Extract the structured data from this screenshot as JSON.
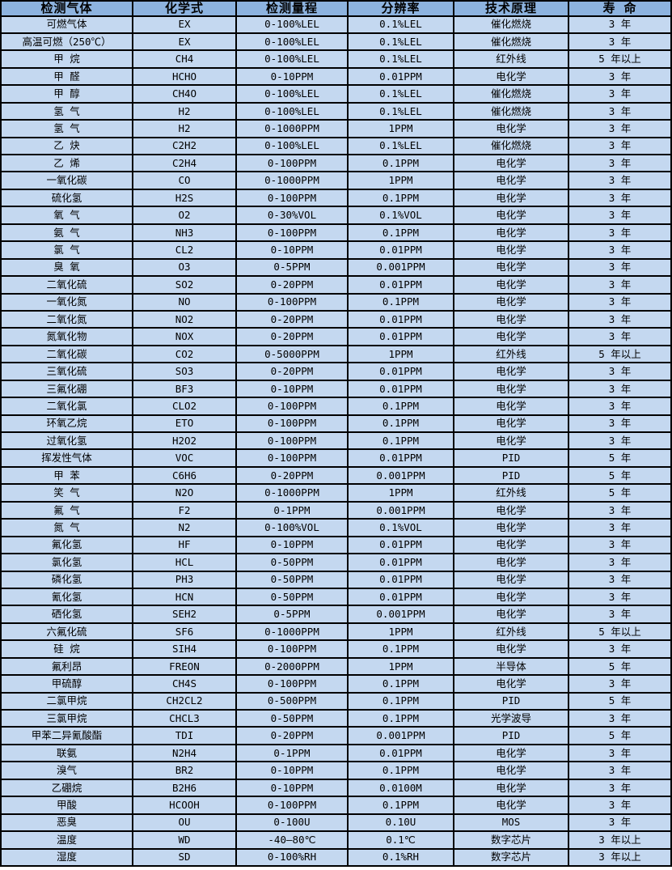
{
  "colors": {
    "header_bg": "#8db3df",
    "row_bg": "#c4d8f0",
    "border": "#000000",
    "text": "#000000"
  },
  "table": {
    "headers": [
      "检测气体",
      "化学式",
      "检测量程",
      "分辨率",
      "技术原理",
      "寿 命"
    ],
    "rows": [
      [
        "可燃气体",
        "EX",
        "0-100%LEL",
        "0.1%LEL",
        "催化燃烧",
        "3 年"
      ],
      [
        "高温可燃（250℃）",
        "EX",
        "0-100%LEL",
        "0.1%LEL",
        "催化燃烧",
        "3 年"
      ],
      [
        "甲 烷",
        "CH4",
        "0-100%LEL",
        "0.1%LEL",
        "红外线",
        "5 年以上"
      ],
      [
        "甲 醛",
        "HCHO",
        "0-10PPM",
        "0.01PPM",
        "电化学",
        "3 年"
      ],
      [
        "甲 醇",
        "CH4O",
        "0-100%LEL",
        "0.1%LEL",
        "催化燃烧",
        "3 年"
      ],
      [
        "氢 气",
        "H2",
        "0-100%LEL",
        "0.1%LEL",
        "催化燃烧",
        "3 年"
      ],
      [
        "氢 气",
        "H2",
        "0-1000PPM",
        "1PPM",
        "电化学",
        "3 年"
      ],
      [
        "乙 炔",
        "C2H2",
        "0-100%LEL",
        "0.1%LEL",
        "催化燃烧",
        "3 年"
      ],
      [
        "乙 烯",
        "C2H4",
        "0-100PPM",
        "0.1PPM",
        "电化学",
        "3 年"
      ],
      [
        "一氧化碳",
        "CO",
        "0-1000PPM",
        "1PPM",
        "电化学",
        "3 年"
      ],
      [
        "硫化氢",
        "H2S",
        "0-100PPM",
        "0.1PPM",
        "电化学",
        "3 年"
      ],
      [
        "氧 气",
        "O2",
        "0-30%VOL",
        "0.1%VOL",
        "电化学",
        "3 年"
      ],
      [
        "氨 气",
        "NH3",
        "0-100PPM",
        "0.1PPM",
        "电化学",
        "3 年"
      ],
      [
        "氯 气",
        "CL2",
        "0-10PPM",
        "0.01PPM",
        "电化学",
        "3 年"
      ],
      [
        "臭 氧",
        "O3",
        "0-5PPM",
        "0.001PPM",
        "电化学",
        "3 年"
      ],
      [
        "二氧化硫",
        "SO2",
        "0-20PPM",
        "0.01PPM",
        "电化学",
        "3 年"
      ],
      [
        "一氧化氮",
        "NO",
        "0-100PPM",
        "0.1PPM",
        "电化学",
        "3 年"
      ],
      [
        "二氧化氮",
        "NO2",
        "0-20PPM",
        "0.01PPM",
        "电化学",
        "3 年"
      ],
      [
        "氮氧化物",
        "NOX",
        "0-20PPM",
        "0.01PPM",
        "电化学",
        "3 年"
      ],
      [
        "二氧化碳",
        "CO2",
        "0-5000PPM",
        "1PPM",
        "红外线",
        "5 年以上"
      ],
      [
        "三氧化硫",
        "SO3",
        "0-20PPM",
        "0.01PPM",
        "电化学",
        "3 年"
      ],
      [
        "三氟化硼",
        "BF3",
        "0-10PPM",
        "0.01PPM",
        "电化学",
        "3 年"
      ],
      [
        "二氧化氯",
        "CLO2",
        "0-100PPM",
        "0.1PPM",
        "电化学",
        "3 年"
      ],
      [
        "环氧乙烷",
        "ETO",
        "0-100PPM",
        "0.1PPM",
        "电化学",
        "3 年"
      ],
      [
        "过氧化氢",
        "H2O2",
        "0-100PPM",
        "0.1PPM",
        "电化学",
        "3 年"
      ],
      [
        "挥发性气体",
        "VOC",
        "0-100PPM",
        "0.01PPM",
        "PID",
        "5 年"
      ],
      [
        "甲 苯",
        "C6H6",
        "0-20PPM",
        "0.001PPM",
        "PID",
        "5 年"
      ],
      [
        "笑 气",
        "N2O",
        "0-1000PPM",
        "1PPM",
        "红外线",
        "5 年"
      ],
      [
        "氟 气",
        "F2",
        "0-1PPM",
        "0.001PPM",
        "电化学",
        "3 年"
      ],
      [
        "氮 气",
        "N2",
        "0-100%VOL",
        "0.1%VOL",
        "电化学",
        "3 年"
      ],
      [
        "氟化氢",
        "HF",
        "0-10PPM",
        "0.01PPM",
        "电化学",
        "3 年"
      ],
      [
        "氯化氢",
        "HCL",
        "0-50PPM",
        "0.01PPM",
        "电化学",
        "3 年"
      ],
      [
        "磷化氢",
        "PH3",
        "0-50PPM",
        "0.01PPM",
        "电化学",
        "3 年"
      ],
      [
        "氰化氢",
        "HCN",
        "0-50PPM",
        "0.01PPM",
        "电化学",
        "3 年"
      ],
      [
        "硒化氢",
        "SEH2",
        "0-5PPM",
        "0.001PPM",
        "电化学",
        "3 年"
      ],
      [
        "六氟化硫",
        "SF6",
        "0-1000PPM",
        "1PPM",
        "红外线",
        "5 年以上"
      ],
      [
        "硅 烷",
        "SIH4",
        "0-100PPM",
        "0.1PPM",
        "电化学",
        "3 年"
      ],
      [
        "氟利昂",
        "FREON",
        "0-2000PPM",
        "1PPM",
        "半导体",
        "5 年"
      ],
      [
        "甲硫醇",
        "CH4S",
        "0-100PPM",
        "0.1PPM",
        "电化学",
        "3 年"
      ],
      [
        "二氯甲烷",
        "CH2CL2",
        "0-500PPM",
        "0.1PPM",
        "PID",
        "5 年"
      ],
      [
        "三氯甲烷",
        "CHCL3",
        "0-50PPM",
        "0.1PPM",
        "光学波导",
        "3 年"
      ],
      [
        "甲苯二异氰酸酯",
        "TDI",
        "0-20PPM",
        "0.001PPM",
        "PID",
        "5 年"
      ],
      [
        "联氨",
        "N2H4",
        "0-1PPM",
        "0.01PPM",
        "电化学",
        "3 年"
      ],
      [
        "溴气",
        "BR2",
        "0-10PPM",
        "0.1PPM",
        "电化学",
        "3 年"
      ],
      [
        "乙硼烷",
        "B2H6",
        "0-10PPM",
        "0.0100M",
        "电化学",
        "3 年"
      ],
      [
        "甲酸",
        "HCOOH",
        "0-100PPM",
        "0.1PPM",
        "电化学",
        "3 年"
      ],
      [
        "恶臭",
        "OU",
        "0-100U",
        "0.10U",
        "MOS",
        "3 年"
      ],
      [
        "温度",
        "WD",
        "-40—80℃",
        "0.1℃",
        "数字芯片",
        "3 年以上"
      ],
      [
        "湿度",
        "SD",
        "0-100%RH",
        "0.1%RH",
        "数字芯片",
        "3 年以上"
      ]
    ]
  }
}
